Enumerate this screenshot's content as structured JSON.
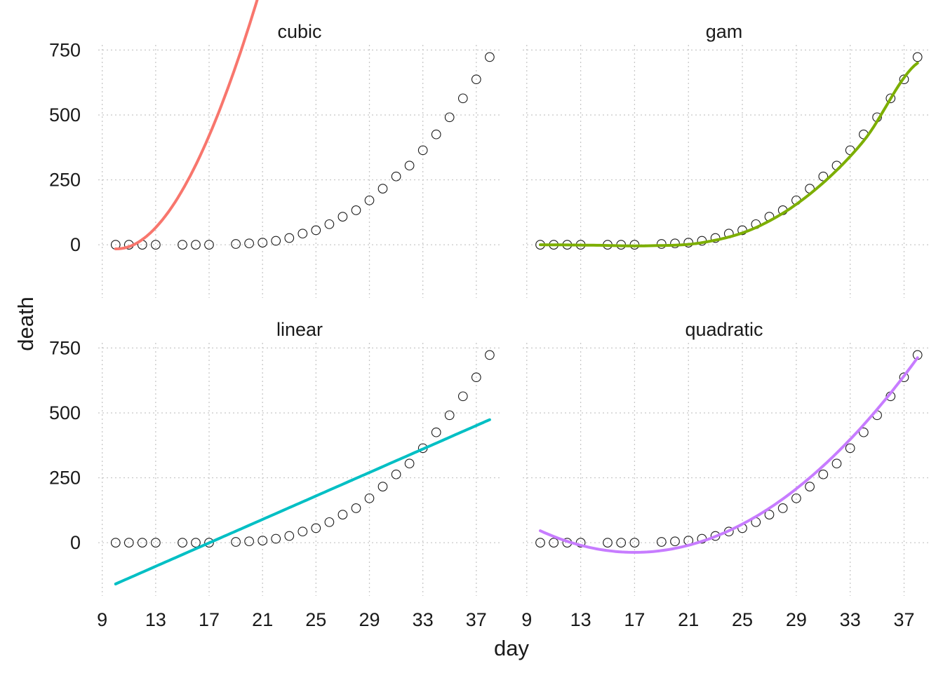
{
  "chart_data": {
    "type": "scatter",
    "facets": [
      "cubic",
      "gam",
      "linear",
      "quadratic"
    ],
    "xlabel": "day",
    "ylabel": "death",
    "x_ticks": [
      9,
      13,
      17,
      21,
      25,
      29,
      33,
      37
    ],
    "y_ticks": [
      0,
      250,
      500,
      750
    ],
    "xlim": [
      8.7,
      38.9
    ],
    "ylim": [
      -205,
      770
    ],
    "grid": true,
    "points": {
      "x": [
        10,
        11,
        12,
        13,
        15,
        16,
        17,
        19,
        20,
        21,
        22,
        23,
        24,
        25,
        26,
        27,
        28,
        29,
        30,
        31,
        32,
        33,
        34,
        35,
        36,
        37,
        38
      ],
      "y": [
        0,
        0,
        0,
        0,
        0,
        0,
        0,
        3,
        5,
        8,
        15,
        26,
        43,
        56,
        79,
        108,
        133,
        171,
        216,
        263,
        305,
        364,
        425,
        491,
        564,
        637,
        723
      ]
    },
    "series": [
      {
        "name": "cubic",
        "color": "#F8766D",
        "x": [
          10,
          38
        ],
        "fit_type": "cubic",
        "coefficients": [
          -0.119,
          13.51,
          -235.98,
          1111.9
        ]
      },
      {
        "name": "gam",
        "color": "#7CAE00",
        "x": [
          10,
          38
        ],
        "fit_type": "smooth",
        "anchors_x": [
          10,
          14,
          18,
          22,
          26,
          30,
          34,
          38
        ],
        "anchors_y": [
          0,
          -2,
          -4,
          8,
          66,
          195,
          400,
          700
        ]
      },
      {
        "name": "linear",
        "color": "#00BFC4",
        "x": [
          10,
          38
        ],
        "fit_type": "linear",
        "coefficients": [
          22.6,
          -385
        ]
      },
      {
        "name": "quadratic",
        "color": "#C77CFF",
        "x": [
          10,
          38
        ],
        "fit_type": "quadratic",
        "coefficients": [
          1.7,
          -57.8,
          454
        ]
      }
    ]
  }
}
